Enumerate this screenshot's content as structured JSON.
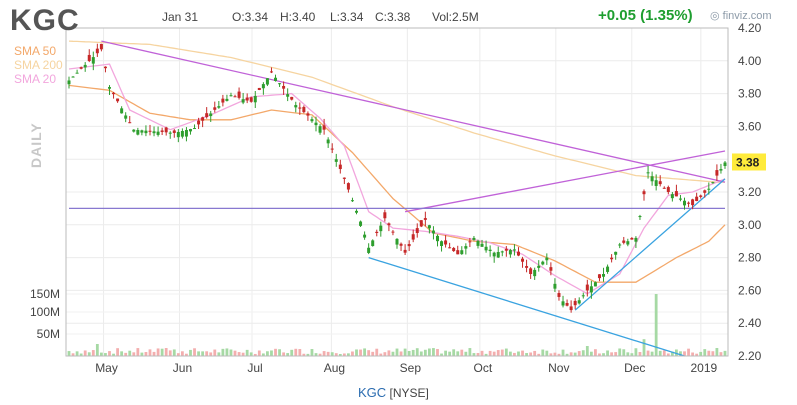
{
  "header": {
    "ticker": "KGC",
    "date": "Jan 31",
    "open": "O:3.34",
    "high": "H:3.40",
    "low": "L:3.34",
    "close": "C:3.38",
    "volume": "Vol:2.5M",
    "change": "+0.05 (1.35%)",
    "brand": "finviz.com",
    "change_color": "#1e9e2f"
  },
  "legend": {
    "sma50": "SMA 50",
    "sma200": "SMA 200",
    "sma20": "SMA 20",
    "sma50_color": "#f3a86a",
    "sma200_color": "#f6d4a0",
    "sma20_color": "#f2a6dd"
  },
  "side_label": "DAILY",
  "footer": {
    "symbol": "KGC",
    "exchange": "[NYSE]"
  },
  "last_price_tag": "3.38",
  "chart_data": {
    "type": "candlestick",
    "price_ylim": [
      2.2,
      4.2
    ],
    "price_ticks": [
      "4.20",
      "4.00",
      "3.80",
      "3.60",
      "3.40",
      "3.20",
      "3.00",
      "2.80",
      "2.60",
      "2.40",
      "2.20"
    ],
    "volume_ticks": [
      "150M",
      "100M",
      "50M"
    ],
    "x_ticks": [
      "May",
      "Jun",
      "Jul",
      "Aug",
      "Sep",
      "Oct",
      "Nov",
      "Dec",
      "2019"
    ],
    "close_path": [
      [
        0,
        3.88
      ],
      [
        8,
        4.07
      ],
      [
        10,
        3.84
      ],
      [
        16,
        3.58
      ],
      [
        26,
        3.56
      ],
      [
        31,
        3.59
      ],
      [
        40,
        3.79
      ],
      [
        45,
        3.75
      ],
      [
        50,
        3.93
      ],
      [
        56,
        3.73
      ],
      [
        63,
        3.58
      ],
      [
        68,
        3.28
      ],
      [
        72,
        3.02
      ],
      [
        74,
        2.86
      ],
      [
        78,
        3.04
      ],
      [
        83,
        2.83
      ],
      [
        88,
        3.03
      ],
      [
        92,
        2.9
      ],
      [
        96,
        2.82
      ],
      [
        100,
        2.92
      ],
      [
        105,
        2.83
      ],
      [
        110,
        2.85
      ],
      [
        114,
        2.7
      ],
      [
        118,
        2.8
      ],
      [
        121,
        2.56
      ],
      [
        124,
        2.48
      ],
      [
        128,
        2.6
      ],
      [
        132,
        2.7
      ],
      [
        136,
        2.88
      ],
      [
        140,
        2.92
      ],
      [
        143,
        3.32
      ],
      [
        148,
        3.2
      ],
      [
        154,
        3.12
      ],
      [
        158,
        3.22
      ],
      [
        162,
        3.38
      ]
    ],
    "sma50_path": [
      [
        0,
        3.85
      ],
      [
        10,
        3.82
      ],
      [
        20,
        3.68
      ],
      [
        30,
        3.64
      ],
      [
        40,
        3.64
      ],
      [
        50,
        3.7
      ],
      [
        60,
        3.67
      ],
      [
        70,
        3.44
      ],
      [
        80,
        3.16
      ],
      [
        90,
        2.95
      ],
      [
        100,
        2.9
      ],
      [
        110,
        2.88
      ],
      [
        120,
        2.78
      ],
      [
        130,
        2.65
      ],
      [
        140,
        2.65
      ],
      [
        150,
        2.8
      ],
      [
        158,
        2.9
      ],
      [
        162,
        3.0
      ]
    ],
    "sma200_path": [
      [
        0,
        4.12
      ],
      [
        20,
        4.1
      ],
      [
        40,
        4.02
      ],
      [
        60,
        3.9
      ],
      [
        80,
        3.72
      ],
      [
        100,
        3.56
      ],
      [
        120,
        3.42
      ],
      [
        140,
        3.3
      ],
      [
        150,
        3.28
      ],
      [
        160,
        3.26
      ],
      [
        162,
        3.26
      ]
    ],
    "sma20_path": [
      [
        0,
        3.95
      ],
      [
        10,
        3.98
      ],
      [
        15,
        3.7
      ],
      [
        25,
        3.58
      ],
      [
        35,
        3.67
      ],
      [
        45,
        3.78
      ],
      [
        55,
        3.8
      ],
      [
        62,
        3.65
      ],
      [
        68,
        3.48
      ],
      [
        74,
        3.08
      ],
      [
        80,
        2.98
      ],
      [
        88,
        2.96
      ],
      [
        96,
        2.93
      ],
      [
        104,
        2.89
      ],
      [
        112,
        2.82
      ],
      [
        120,
        2.69
      ],
      [
        128,
        2.58
      ],
      [
        136,
        2.7
      ],
      [
        142,
        2.98
      ],
      [
        148,
        3.18
      ],
      [
        154,
        3.2
      ],
      [
        162,
        3.28
      ]
    ],
    "trendlines": [
      {
        "color": "#c062d8",
        "points": [
          [
            8,
            4.12
          ],
          [
            162,
            3.26
          ]
        ]
      },
      {
        "color": "#c062d8",
        "points": [
          [
            83,
            3.08
          ],
          [
            162,
            3.45
          ]
        ]
      },
      {
        "color": "#3aa3e0",
        "points": [
          [
            74,
            2.8
          ],
          [
            152,
            2.2
          ]
        ]
      },
      {
        "color": "#3aa3e0",
        "points": [
          [
            125,
            2.48
          ],
          [
            162,
            3.28
          ]
        ]
      },
      {
        "color": "#8878d0",
        "points": [
          [
            0,
            3.1
          ],
          [
            162,
            3.1
          ]
        ]
      }
    ],
    "volume_spikes": [
      [
        7,
        30
      ],
      [
        24,
        20
      ],
      [
        51,
        18
      ],
      [
        128,
        25
      ],
      [
        142,
        42
      ],
      [
        145,
        155
      ],
      [
        160,
        20
      ]
    ]
  }
}
